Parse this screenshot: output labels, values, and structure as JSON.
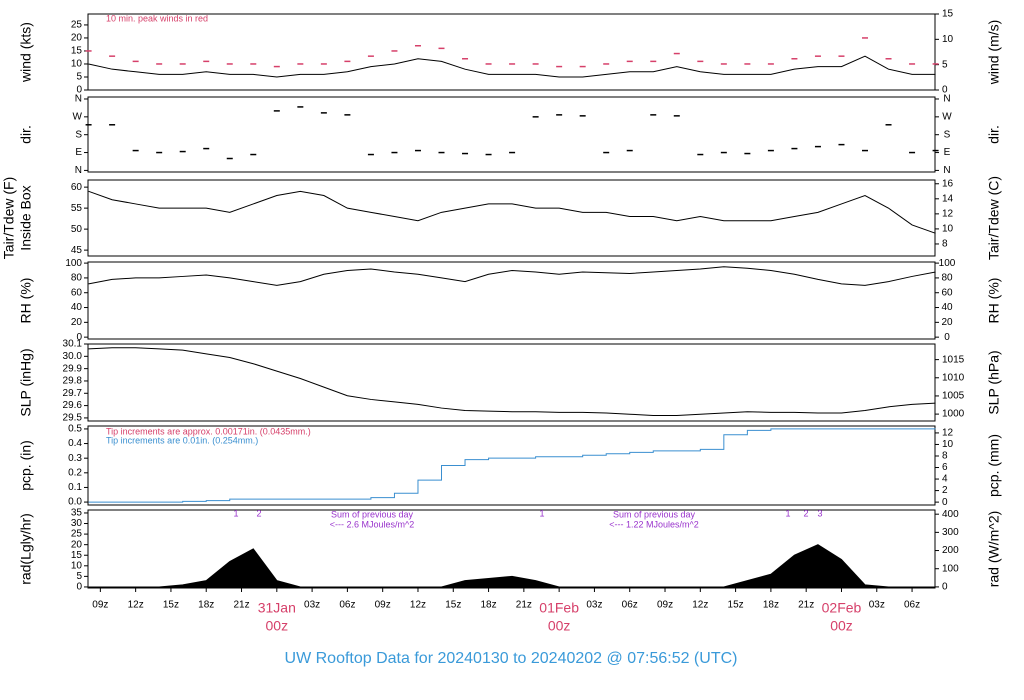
{
  "title": "UW Rooftop Data for 20240130  to  20240202 @ 07:56:52  (UTC)",
  "chart_data": [
    {
      "type": "line",
      "ylabel": "wind (kts)",
      "y2label": "wind (m/s)",
      "xlim": [
        7.95,
        79.95
      ],
      "ylim": [
        0,
        29.2
      ],
      "yticks": [
        0,
        5,
        10,
        15,
        20,
        25
      ],
      "y2lim": [
        0,
        15.0
      ],
      "y2ticks": [
        0,
        5,
        10,
        15
      ],
      "notes": [
        {
          "text": "10 min. peak winds in red",
          "color": "#d6406a"
        }
      ],
      "x": [
        8,
        10,
        12,
        14,
        16,
        18,
        20,
        22,
        24,
        26,
        28,
        30,
        32,
        34,
        36,
        38,
        40,
        42,
        44,
        46,
        48,
        50,
        52,
        54,
        56,
        58,
        60,
        62,
        64,
        66,
        68,
        70,
        72,
        74,
        76,
        78,
        80
      ],
      "series": [
        {
          "color": "#000000",
          "values": [
            10,
            8,
            7,
            6,
            6,
            7,
            6,
            6,
            5,
            6,
            6,
            7,
            9,
            10,
            12,
            11,
            8,
            6,
            6,
            6,
            5,
            5,
            6,
            7,
            7,
            9,
            7,
            6,
            6,
            6,
            8,
            9,
            9,
            13,
            8,
            6,
            6
          ]
        },
        {
          "color": "#d6406a",
          "marker": "dash",
          "values": [
            15,
            13,
            11,
            10,
            10,
            11,
            10,
            10,
            9,
            10,
            10,
            11,
            13,
            15,
            17,
            16,
            12,
            10,
            10,
            10,
            9,
            9,
            10,
            11,
            11,
            14,
            11,
            10,
            10,
            10,
            12,
            13,
            13,
            20,
            12,
            10,
            10
          ]
        }
      ]
    },
    {
      "type": "scatter",
      "ylabel": "dir.",
      "y2label": "dir.",
      "xlim": [
        7.95,
        79.95
      ],
      "ylim": [
        -8,
        370
      ],
      "mirror_ticks": true,
      "yticks": [
        {
          "value": 0,
          "label": "N"
        },
        {
          "value": 90,
          "label": "E"
        },
        {
          "value": 180,
          "label": "S"
        },
        {
          "value": 270,
          "label": "W"
        },
        {
          "value": 360,
          "label": "N"
        }
      ],
      "x": [
        8,
        10,
        12,
        14,
        16,
        18,
        20,
        22,
        24,
        26,
        28,
        30,
        32,
        34,
        36,
        38,
        40,
        42,
        44,
        46,
        48,
        50,
        52,
        54,
        56,
        58,
        60,
        62,
        64,
        66,
        68,
        70,
        72,
        74,
        76,
        78,
        80
      ],
      "series": [
        {
          "color": "#000000",
          "marker": "dash",
          "values": [
            230,
            230,
            100,
            90,
            95,
            110,
            60,
            80,
            300,
            320,
            290,
            280,
            80,
            90,
            100,
            90,
            85,
            80,
            90,
            270,
            280,
            275,
            90,
            100,
            280,
            275,
            80,
            90,
            85,
            100,
            110,
            120,
            130,
            100,
            230,
            90,
            100
          ]
        }
      ]
    },
    {
      "type": "line",
      "ylabel": "Tair/Tdew (F)",
      "ylabel2": "Inside Box",
      "y2label": "Tair/Tdew (C)",
      "xlim": [
        7.95,
        79.95
      ],
      "ylim": [
        43.6,
        61.7
      ],
      "yticks": [
        45,
        50,
        55,
        60
      ],
      "y2lim": [
        6.4,
        16.5
      ],
      "y2ticks": [
        8,
        10,
        12,
        14,
        16
      ],
      "x": [
        8,
        10,
        12,
        14,
        16,
        18,
        20,
        22,
        24,
        26,
        28,
        30,
        32,
        34,
        36,
        38,
        40,
        42,
        44,
        46,
        48,
        50,
        52,
        54,
        56,
        58,
        60,
        62,
        64,
        66,
        68,
        70,
        72,
        74,
        76,
        78,
        80
      ],
      "series": [
        {
          "color": "#000000",
          "values": [
            59,
            57,
            56,
            55,
            55,
            55,
            54,
            56,
            58,
            59,
            58,
            55,
            54,
            53,
            52,
            54,
            55,
            56,
            56,
            55,
            55,
            54,
            54,
            53,
            53,
            52,
            53,
            52,
            52,
            52,
            53,
            54,
            56,
            58,
            55,
            51,
            49
          ]
        }
      ]
    },
    {
      "type": "line",
      "ylabel": "RH (%)",
      "y2label": "RH (%)",
      "xlim": [
        7.95,
        79.95
      ],
      "ylim": [
        -2.5,
        101.5
      ],
      "yticks": [
        0,
        20,
        40,
        60,
        80,
        100
      ],
      "mirror_ticks": true,
      "x": [
        8,
        10,
        12,
        14,
        16,
        18,
        20,
        22,
        24,
        26,
        28,
        30,
        32,
        34,
        36,
        38,
        40,
        42,
        44,
        46,
        48,
        50,
        52,
        54,
        56,
        58,
        60,
        62,
        64,
        66,
        68,
        70,
        72,
        74,
        76,
        78,
        80
      ],
      "series": [
        {
          "color": "#000000",
          "values": [
            72,
            78,
            80,
            80,
            82,
            84,
            80,
            75,
            70,
            75,
            85,
            90,
            92,
            88,
            85,
            80,
            75,
            85,
            90,
            88,
            85,
            88,
            87,
            86,
            88,
            90,
            92,
            95,
            93,
            90,
            85,
            78,
            72,
            70,
            75,
            82,
            88
          ]
        }
      ]
    },
    {
      "type": "line",
      "ylabel": "SLP (inHg)",
      "y2label": "SLP (hPa)",
      "xlim": [
        7.95,
        79.95
      ],
      "ylim": [
        29.475,
        30.1
      ],
      "yticks": [
        29.5,
        29.6,
        29.7,
        29.8,
        29.9,
        {
          "value": 30,
          "label": "30.0"
        },
        30.1
      ],
      "y2lim": [
        998.1,
        1019.3
      ],
      "y2ticks": [
        1000,
        1005,
        1010,
        1015
      ],
      "x": [
        8,
        10,
        12,
        14,
        16,
        18,
        20,
        22,
        24,
        26,
        28,
        30,
        32,
        34,
        36,
        38,
        40,
        42,
        44,
        46,
        48,
        50,
        52,
        54,
        56,
        58,
        60,
        62,
        64,
        66,
        68,
        70,
        72,
        74,
        76,
        78,
        80
      ],
      "series": [
        {
          "color": "#000000",
          "values": [
            30.06,
            30.07,
            30.07,
            30.06,
            30.05,
            30.02,
            29.99,
            29.94,
            29.88,
            29.82,
            29.75,
            29.68,
            29.65,
            29.63,
            29.61,
            29.58,
            29.56,
            29.555,
            29.55,
            29.55,
            29.545,
            29.545,
            29.54,
            29.53,
            29.52,
            29.52,
            29.53,
            29.54,
            29.55,
            29.545,
            29.545,
            29.54,
            29.54,
            29.56,
            29.59,
            29.61,
            29.62
          ]
        }
      ]
    },
    {
      "type": "step",
      "ylabel": "pcp. (in)",
      "y2label": "pcp. (mm)",
      "xlim": [
        7.95,
        79.95
      ],
      "ylim": [
        -0.02,
        0.52
      ],
      "yticks": [
        {
          "value": 0,
          "label": "0.0"
        },
        0.1,
        0.2,
        0.3,
        0.4,
        0.5
      ],
      "y2lim": [
        -0.5,
        13.2
      ],
      "y2ticks": [
        0,
        2,
        4,
        6,
        8,
        10,
        12
      ],
      "notes": [
        {
          "text": "Tip increments are approx. 0.00171in. (0.0435mm.)",
          "color": "#d6406a"
        },
        {
          "text": "Tip increments are 0.01in. (0.254mm.)",
          "color": "#3a8fd0"
        }
      ],
      "x": [
        8,
        10,
        12,
        14,
        16,
        18,
        20,
        22,
        24,
        26,
        28,
        30,
        32,
        34,
        36,
        38,
        40,
        42,
        44,
        46,
        48,
        50,
        52,
        54,
        56,
        58,
        60,
        62,
        64,
        66,
        68,
        70,
        72,
        74,
        76,
        78,
        80
      ],
      "series": [
        {
          "color": "#3a8fd0",
          "values": [
            0,
            0,
            0,
            0,
            0.005,
            0.01,
            0.02,
            0.02,
            0.02,
            0.02,
            0.02,
            0.02,
            0.03,
            0.06,
            0.15,
            0.25,
            0.29,
            0.3,
            0.3,
            0.31,
            0.31,
            0.32,
            0.33,
            0.34,
            0.35,
            0.35,
            0.36,
            0.46,
            0.49,
            0.5,
            0.5,
            0.5,
            0.5,
            0.5,
            0.5,
            0.5,
            0.5
          ]
        }
      ]
    },
    {
      "type": "area",
      "ylabel": "rad(Lgly/hr)",
      "y2label": "rad (W/m^2)",
      "xlim": [
        7.95,
        79.95
      ],
      "ylim": [
        -0.5,
        36.4
      ],
      "yticks": [
        0,
        5,
        10,
        15,
        20,
        25,
        30,
        35
      ],
      "y2lim": [
        -6,
        423
      ],
      "y2ticks": [
        0,
        100,
        200,
        300,
        400
      ],
      "notes": [
        {
          "text": "Sum of previous day",
          "color": "#9933cc"
        },
        {
          "text": "<--- 2.6 MJoules/m^2",
          "color": "#9933cc"
        },
        {
          "text": "Sum of previous day",
          "color": "#9933cc"
        },
        {
          "text": "<--- 1.22 MJoules/m^2",
          "color": "#9933cc"
        },
        {
          "text": "1",
          "color": "#9933cc"
        },
        {
          "text": "2",
          "color": "#9933cc"
        },
        {
          "text": "1",
          "color": "#9933cc"
        },
        {
          "text": "1",
          "color": "#9933cc"
        },
        {
          "text": "2",
          "color": "#9933cc"
        },
        {
          "text": "3",
          "color": "#9933cc"
        }
      ],
      "x": [
        8,
        10,
        12,
        14,
        16,
        18,
        20,
        22,
        24,
        26,
        28,
        30,
        32,
        34,
        36,
        38,
        40,
        42,
        44,
        46,
        48,
        50,
        52,
        54,
        56,
        58,
        60,
        62,
        64,
        66,
        68,
        70,
        72,
        74,
        76,
        78,
        80
      ],
      "series": [
        {
          "color": "#000000",
          "values": [
            0,
            0,
            0,
            0,
            1,
            3,
            12,
            18,
            3,
            0,
            0,
            0,
            0,
            0,
            0,
            0,
            3,
            4,
            5,
            3,
            0,
            0,
            0,
            0,
            0,
            0,
            0,
            0,
            3,
            6,
            15,
            20,
            13,
            1,
            0,
            0,
            0
          ]
        }
      ],
      "xticks": [
        {
          "value": 9,
          "label": "09z"
        },
        {
          "value": 12,
          "label": "12z"
        },
        {
          "value": 15,
          "label": "15z"
        },
        {
          "value": 18,
          "label": "18z"
        },
        {
          "value": 21,
          "label": "21z"
        },
        {
          "value": 24,
          "label": "31Jan",
          "sublabel": "00z"
        },
        {
          "value": 27,
          "label": "03z"
        },
        {
          "value": 30,
          "label": "06z"
        },
        {
          "value": 33,
          "label": "09z"
        },
        {
          "value": 36,
          "label": "12z"
        },
        {
          "value": 39,
          "label": "15z"
        },
        {
          "value": 42,
          "label": "18z"
        },
        {
          "value": 45,
          "label": "21z"
        },
        {
          "value": 48,
          "label": "01Feb",
          "sublabel": "00z"
        },
        {
          "value": 51,
          "label": "03z"
        },
        {
          "value": 54,
          "label": "06z"
        },
        {
          "value": 57,
          "label": "09z"
        },
        {
          "value": 60,
          "label": "12z"
        },
        {
          "value": 63,
          "label": "15z"
        },
        {
          "value": 66,
          "label": "18z"
        },
        {
          "value": 69,
          "label": "21z"
        },
        {
          "value": 72,
          "label": "02Feb",
          "sublabel": "00z"
        },
        {
          "value": 75,
          "label": "03z"
        },
        {
          "value": 78,
          "label": "06z"
        }
      ]
    }
  ]
}
